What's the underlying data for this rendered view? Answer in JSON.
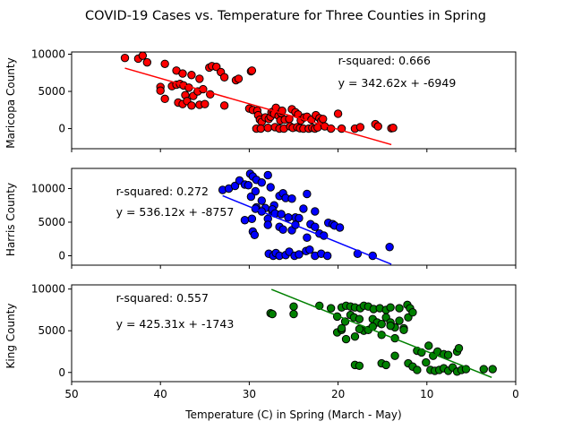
{
  "title": "COVID-19 Cases vs. Temperature for Three Counties in Spring",
  "xlabel": "Temperature (C) in Spring (March - May)",
  "chart_data": [
    {
      "type": "scatter",
      "ylabel": "Maricopa County",
      "color": "#ff0000",
      "xlim": [
        50,
        0
      ],
      "ylim": [
        -2700,
        10300
      ],
      "yticks": [
        0,
        5000,
        10000
      ],
      "r_squared_label": "r-squared: 0.666",
      "equation_label": "y = 342.62x + -6949",
      "fit_x_range": [
        44,
        14
      ],
      "points": [
        [
          44,
          9500
        ],
        [
          42.5,
          9400
        ],
        [
          42,
          9800
        ],
        [
          41.5,
          8900
        ],
        [
          39.5,
          8700
        ],
        [
          38.2,
          7800
        ],
        [
          37.5,
          7400
        ],
        [
          36.5,
          7200
        ],
        [
          35.6,
          6700
        ],
        [
          34.5,
          8200
        ],
        [
          34.2,
          8400
        ],
        [
          33.7,
          8300
        ],
        [
          33.2,
          7600
        ],
        [
          32.8,
          6900
        ],
        [
          31.5,
          6500
        ],
        [
          31.2,
          6700
        ],
        [
          29.8,
          7700
        ],
        [
          29.7,
          7800
        ],
        [
          40,
          5600
        ],
        [
          40,
          5100
        ],
        [
          39.5,
          4000
        ],
        [
          38.7,
          5700
        ],
        [
          38.2,
          5900
        ],
        [
          37.8,
          6000
        ],
        [
          37.4,
          5800
        ],
        [
          37.2,
          4500
        ],
        [
          36.8,
          5500
        ],
        [
          36.3,
          4400
        ],
        [
          35.8,
          5000
        ],
        [
          35.2,
          5300
        ],
        [
          34.4,
          4600
        ],
        [
          38,
          3500
        ],
        [
          37.5,
          3300
        ],
        [
          37.0,
          3700
        ],
        [
          36.5,
          3100
        ],
        [
          35.6,
          3200
        ],
        [
          35,
          3300
        ],
        [
          32.8,
          3100
        ],
        [
          30,
          2700
        ],
        [
          29.6,
          2500
        ],
        [
          29.1,
          2400
        ],
        [
          29,
          1800
        ],
        [
          28.8,
          1200
        ],
        [
          28.6,
          900
        ],
        [
          28.2,
          1500
        ],
        [
          27.8,
          1300
        ],
        [
          27.6,
          1600
        ],
        [
          27.5,
          2200
        ],
        [
          27.3,
          2300
        ],
        [
          27.2,
          2000
        ],
        [
          27,
          2800
        ],
        [
          26.7,
          1700
        ],
        [
          26.5,
          1100
        ],
        [
          26.4,
          2100
        ],
        [
          26.3,
          2400
        ],
        [
          26,
          1200
        ],
        [
          25.5,
          1300
        ],
        [
          25.2,
          2600
        ],
        [
          24.8,
          2200
        ],
        [
          24.5,
          1900
        ],
        [
          24.2,
          1100
        ],
        [
          23.8,
          1500
        ],
        [
          23.5,
          1600
        ],
        [
          23,
          1200
        ],
        [
          22.5,
          1800
        ],
        [
          22.1,
          1400
        ],
        [
          21.9,
          1000
        ],
        [
          21.7,
          1300
        ],
        [
          20,
          2000
        ],
        [
          29.2,
          0
        ],
        [
          28.7,
          0
        ],
        [
          27.9,
          100
        ],
        [
          27.1,
          200
        ],
        [
          26.6,
          0
        ],
        [
          26.1,
          0
        ],
        [
          25.4,
          300
        ],
        [
          25.1,
          100
        ],
        [
          24.6,
          200
        ],
        [
          24.3,
          50
        ],
        [
          23.9,
          0
        ],
        [
          23.3,
          0
        ],
        [
          22.9,
          100
        ],
        [
          22.6,
          0
        ],
        [
          22.3,
          150
        ],
        [
          21.5,
          300
        ],
        [
          20.8,
          0
        ],
        [
          19.6,
          0
        ],
        [
          18.1,
          0
        ],
        [
          17.5,
          200
        ],
        [
          15.8,
          600
        ],
        [
          15.5,
          300
        ],
        [
          14,
          50
        ],
        [
          13.8,
          100
        ]
      ]
    },
    {
      "type": "scatter",
      "ylabel": "Harris County",
      "color": "#0000ff",
      "xlim": [
        50,
        0
      ],
      "ylim": [
        -1400,
        13000
      ],
      "yticks": [
        0,
        5000,
        10000
      ],
      "r_squared_label": "r-squared: 0.272",
      "equation_label": "y = 536.12x + -8757",
      "fit_x_range": [
        33,
        14
      ],
      "points": [
        [
          33,
          9800
        ],
        [
          32.3,
          10000
        ],
        [
          31.6,
          10400
        ],
        [
          31.1,
          11200
        ],
        [
          30.5,
          10600
        ],
        [
          30.1,
          10500
        ],
        [
          29.9,
          12200
        ],
        [
          29.6,
          11800
        ],
        [
          29.2,
          11300
        ],
        [
          28.6,
          10900
        ],
        [
          27.9,
          12000
        ],
        [
          27.6,
          10200
        ],
        [
          29.8,
          8800
        ],
        [
          29.3,
          9600
        ],
        [
          29.2,
          7200
        ],
        [
          28.6,
          8200
        ],
        [
          28.2,
          7100
        ],
        [
          27.9,
          5500
        ],
        [
          27.4,
          6600
        ],
        [
          27.2,
          7500
        ],
        [
          26.6,
          8900
        ],
        [
          26.2,
          9300
        ],
        [
          25.9,
          8600
        ],
        [
          25.2,
          8500
        ],
        [
          24.8,
          5700
        ],
        [
          24.4,
          5600
        ],
        [
          23.9,
          7000
        ],
        [
          23.5,
          9200
        ],
        [
          23.1,
          4700
        ],
        [
          22.6,
          6600
        ],
        [
          30.5,
          5300
        ],
        [
          29.7,
          5500
        ],
        [
          29.3,
          7000
        ],
        [
          28.6,
          6600
        ],
        [
          27.9,
          4600
        ],
        [
          27.4,
          6900
        ],
        [
          27.1,
          6300
        ],
        [
          26.6,
          4300
        ],
        [
          26.4,
          6200
        ],
        [
          26.2,
          3900
        ],
        [
          25.6,
          5700
        ],
        [
          25.2,
          3800
        ],
        [
          24.8,
          4600
        ],
        [
          23.5,
          2700
        ],
        [
          22.6,
          4300
        ],
        [
          22.1,
          3300
        ],
        [
          21.6,
          3000
        ],
        [
          21.1,
          4900
        ],
        [
          20.6,
          4700
        ],
        [
          20.4,
          4500
        ],
        [
          19.8,
          4200
        ],
        [
          17.8,
          300
        ],
        [
          16.1,
          0
        ],
        [
          14.2,
          1300
        ],
        [
          29.6,
          3600
        ],
        [
          29.4,
          3100
        ],
        [
          27.8,
          300
        ],
        [
          27.3,
          0
        ],
        [
          27.0,
          400
        ],
        [
          26.6,
          0
        ],
        [
          25.9,
          100
        ],
        [
          25.5,
          600
        ],
        [
          24.9,
          0
        ],
        [
          24.4,
          200
        ],
        [
          23.6,
          700
        ],
        [
          23.2,
          900
        ],
        [
          22.6,
          0
        ],
        [
          21.9,
          300
        ],
        [
          21.2,
          0
        ]
      ]
    },
    {
      "type": "scatter",
      "ylabel": "King County",
      "color": "#008000",
      "xlim": [
        50,
        0
      ],
      "ylim": [
        -1100,
        10500
      ],
      "yticks": [
        0,
        5000,
        10000
      ],
      "r_squared_label": "r-squared: 0.557",
      "equation_label": "y = 425.31x + -1743",
      "fit_x_range": [
        27.5,
        2.7
      ],
      "points": [
        [
          27.6,
          7100
        ],
        [
          27.4,
          7000
        ],
        [
          25,
          7900
        ],
        [
          25,
          7000
        ],
        [
          22.1,
          8000
        ],
        [
          20.8,
          7700
        ],
        [
          20.1,
          6700
        ],
        [
          19.6,
          7800
        ],
        [
          19.1,
          8000
        ],
        [
          18.6,
          7900
        ],
        [
          18.1,
          7800
        ],
        [
          17.5,
          7700
        ],
        [
          17.1,
          8000
        ],
        [
          16.6,
          7900
        ],
        [
          16,
          7600
        ],
        [
          15.3,
          7700
        ],
        [
          14.6,
          7500
        ],
        [
          14.1,
          7800
        ],
        [
          13.1,
          7700
        ],
        [
          12.2,
          8100
        ],
        [
          11.9,
          7700
        ],
        [
          20.1,
          4800
        ],
        [
          19.6,
          5100
        ],
        [
          19.2,
          6100
        ],
        [
          18.6,
          6900
        ],
        [
          18.2,
          6600
        ],
        [
          17.6,
          6400
        ],
        [
          17.1,
          5000
        ],
        [
          16.6,
          5100
        ],
        [
          16.1,
          6400
        ],
        [
          15.6,
          6000
        ],
        [
          15.1,
          5800
        ],
        [
          14.6,
          6600
        ],
        [
          14.1,
          6000
        ],
        [
          13.6,
          5400
        ],
        [
          13.1,
          6200
        ],
        [
          12.6,
          5300
        ],
        [
          12.1,
          6600
        ],
        [
          11.6,
          7200
        ],
        [
          19.6,
          5300
        ],
        [
          19.1,
          4000
        ],
        [
          18.1,
          4300
        ],
        [
          17.6,
          5200
        ],
        [
          16.1,
          5500
        ],
        [
          15.1,
          4500
        ],
        [
          14.1,
          5600
        ],
        [
          13.6,
          4100
        ],
        [
          12.6,
          5100
        ],
        [
          11.1,
          2600
        ],
        [
          10.6,
          2400
        ],
        [
          9.8,
          3200
        ],
        [
          9.3,
          2000
        ],
        [
          8.8,
          2500
        ],
        [
          8.1,
          2200
        ],
        [
          7.6,
          2100
        ],
        [
          6.6,
          2500
        ],
        [
          6.4,
          2900
        ],
        [
          18.1,
          900
        ],
        [
          17.6,
          800
        ],
        [
          15.1,
          1100
        ],
        [
          14.6,
          900
        ],
        [
          13.6,
          2000
        ],
        [
          12.1,
          1100
        ],
        [
          11.6,
          700
        ],
        [
          11.1,
          300
        ],
        [
          10.1,
          1200
        ],
        [
          9.6,
          300
        ],
        [
          9.1,
          200
        ],
        [
          8.6,
          300
        ],
        [
          8.1,
          500
        ],
        [
          7.6,
          200
        ],
        [
          7.1,
          600
        ],
        [
          6.6,
          100
        ],
        [
          6.1,
          300
        ],
        [
          5.6,
          400
        ],
        [
          3.6,
          400
        ],
        [
          2.6,
          400
        ]
      ]
    }
  ]
}
